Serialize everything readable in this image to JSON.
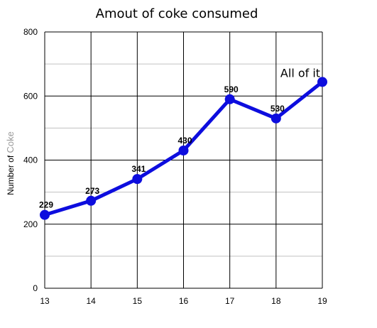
{
  "chart_data": {
    "type": "line",
    "title": "Amout of coke consumed",
    "ylabel_prefix": "Number of ",
    "ylabel_accent": "Coke",
    "xlabel": "",
    "x": [
      13,
      14,
      15,
      16,
      17,
      18,
      19
    ],
    "series": [
      {
        "values": [
          229,
          273,
          341,
          430,
          590,
          530,
          644
        ]
      }
    ],
    "data_labels": [
      "229",
      "273",
      "341",
      "430",
      "590",
      "530",
      ""
    ],
    "annotation": {
      "text": "All of it",
      "x": 19,
      "y": 644
    },
    "xlim": [
      13,
      19
    ],
    "ylim": [
      0,
      800
    ],
    "yticks": [
      0,
      200,
      400,
      600,
      800
    ],
    "yminor": [
      100,
      300,
      500,
      700
    ],
    "grid": true,
    "legend": "none",
    "colors": {
      "line": "#0d0dde",
      "grid_major": "#000000",
      "grid_minor": "#c0c0c0"
    }
  }
}
